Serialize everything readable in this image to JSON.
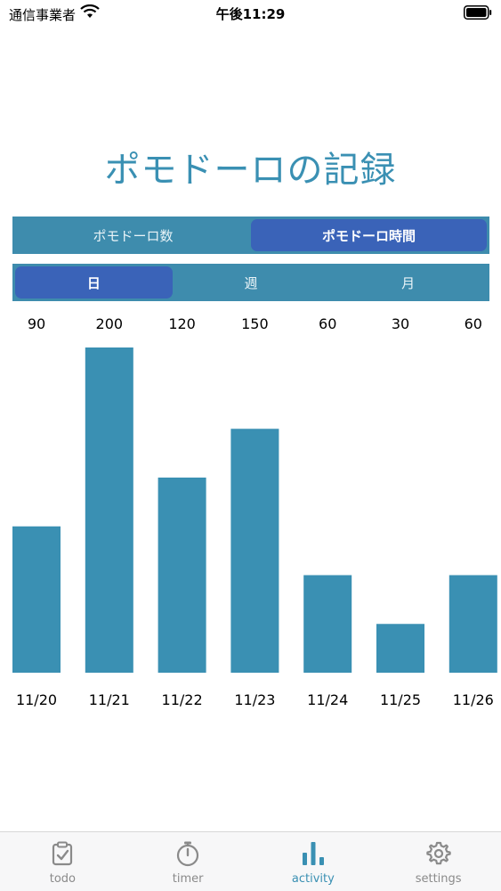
{
  "status_bar": {
    "carrier": "通信事業者",
    "time": "午後11:29"
  },
  "title": "ポモドーロの記録",
  "mode_segment": {
    "items": [
      "ポモドーロ数",
      "ポモドーロ時間"
    ],
    "selected": 1
  },
  "period_segment": {
    "items": [
      "日",
      "週",
      "月"
    ],
    "selected": 0
  },
  "chart_data": {
    "type": "bar",
    "categories": [
      "11/20",
      "11/21",
      "11/22",
      "11/23",
      "11/24",
      "11/25",
      "11/26"
    ],
    "values": [
      90,
      200,
      120,
      150,
      60,
      30,
      60
    ],
    "ylim": [
      0,
      200
    ],
    "bar_color": "#3a90b3",
    "value_labels_position": "top",
    "grid": false
  },
  "tab_bar": {
    "items": [
      {
        "label": "todo",
        "icon": "clipboard-check-icon"
      },
      {
        "label": "timer",
        "icon": "stopwatch-icon"
      },
      {
        "label": "activity",
        "icon": "bar-chart-icon"
      },
      {
        "label": "settings",
        "icon": "gear-icon"
      }
    ],
    "active": 2
  },
  "colors": {
    "accent": "#3a90b3",
    "segment_bg": "#3e8cad",
    "segment_active": "#3a63b8",
    "inactive": "#8a8a8a"
  }
}
